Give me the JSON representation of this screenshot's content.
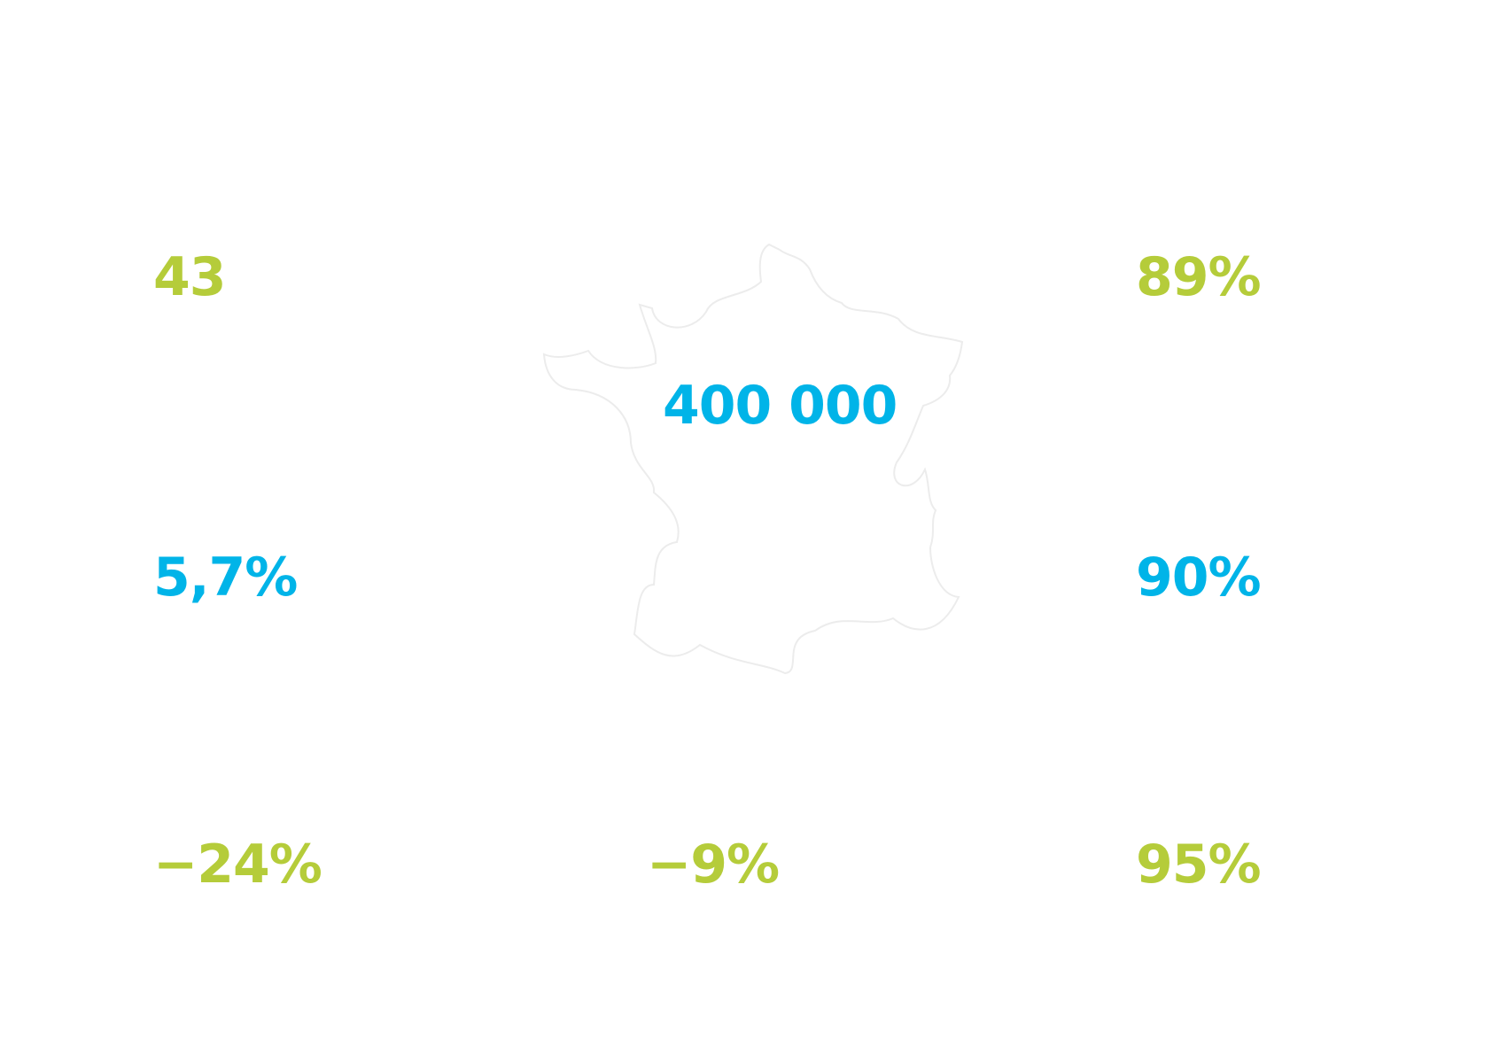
{
  "stats": [
    {
      "text": "43",
      "color": "#b5cc3a"
    },
    {
      "text": "89%",
      "color": "#b5cc3a"
    },
    {
      "text": "400 000",
      "color": "#00b4e8"
    },
    {
      "text": "5,7%",
      "color": "#00b4e8"
    },
    {
      "text": "90%",
      "color": "#00b4e8"
    },
    {
      "text": "−24%",
      "color": "#b5cc3a"
    },
    {
      "text": "−9%",
      "color": "#b5cc3a"
    },
    {
      "text": "95%",
      "color": "#b5cc3a"
    }
  ]
}
